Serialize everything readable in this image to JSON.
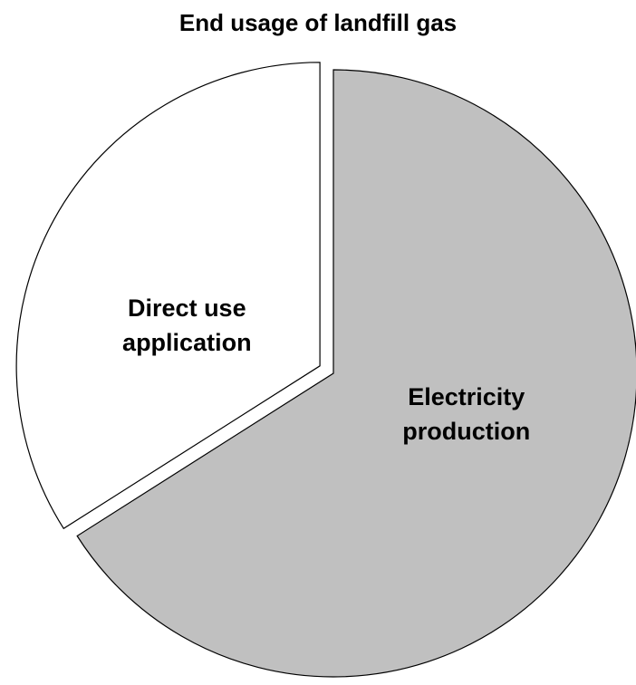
{
  "chart_data": {
    "type": "pie",
    "title": "End usage of landfill gas",
    "categories": [
      "Electricity production",
      "Direct use application"
    ],
    "values": [
      66,
      34
    ],
    "colors": [
      "#c0c0c0",
      "#ffffff"
    ]
  }
}
